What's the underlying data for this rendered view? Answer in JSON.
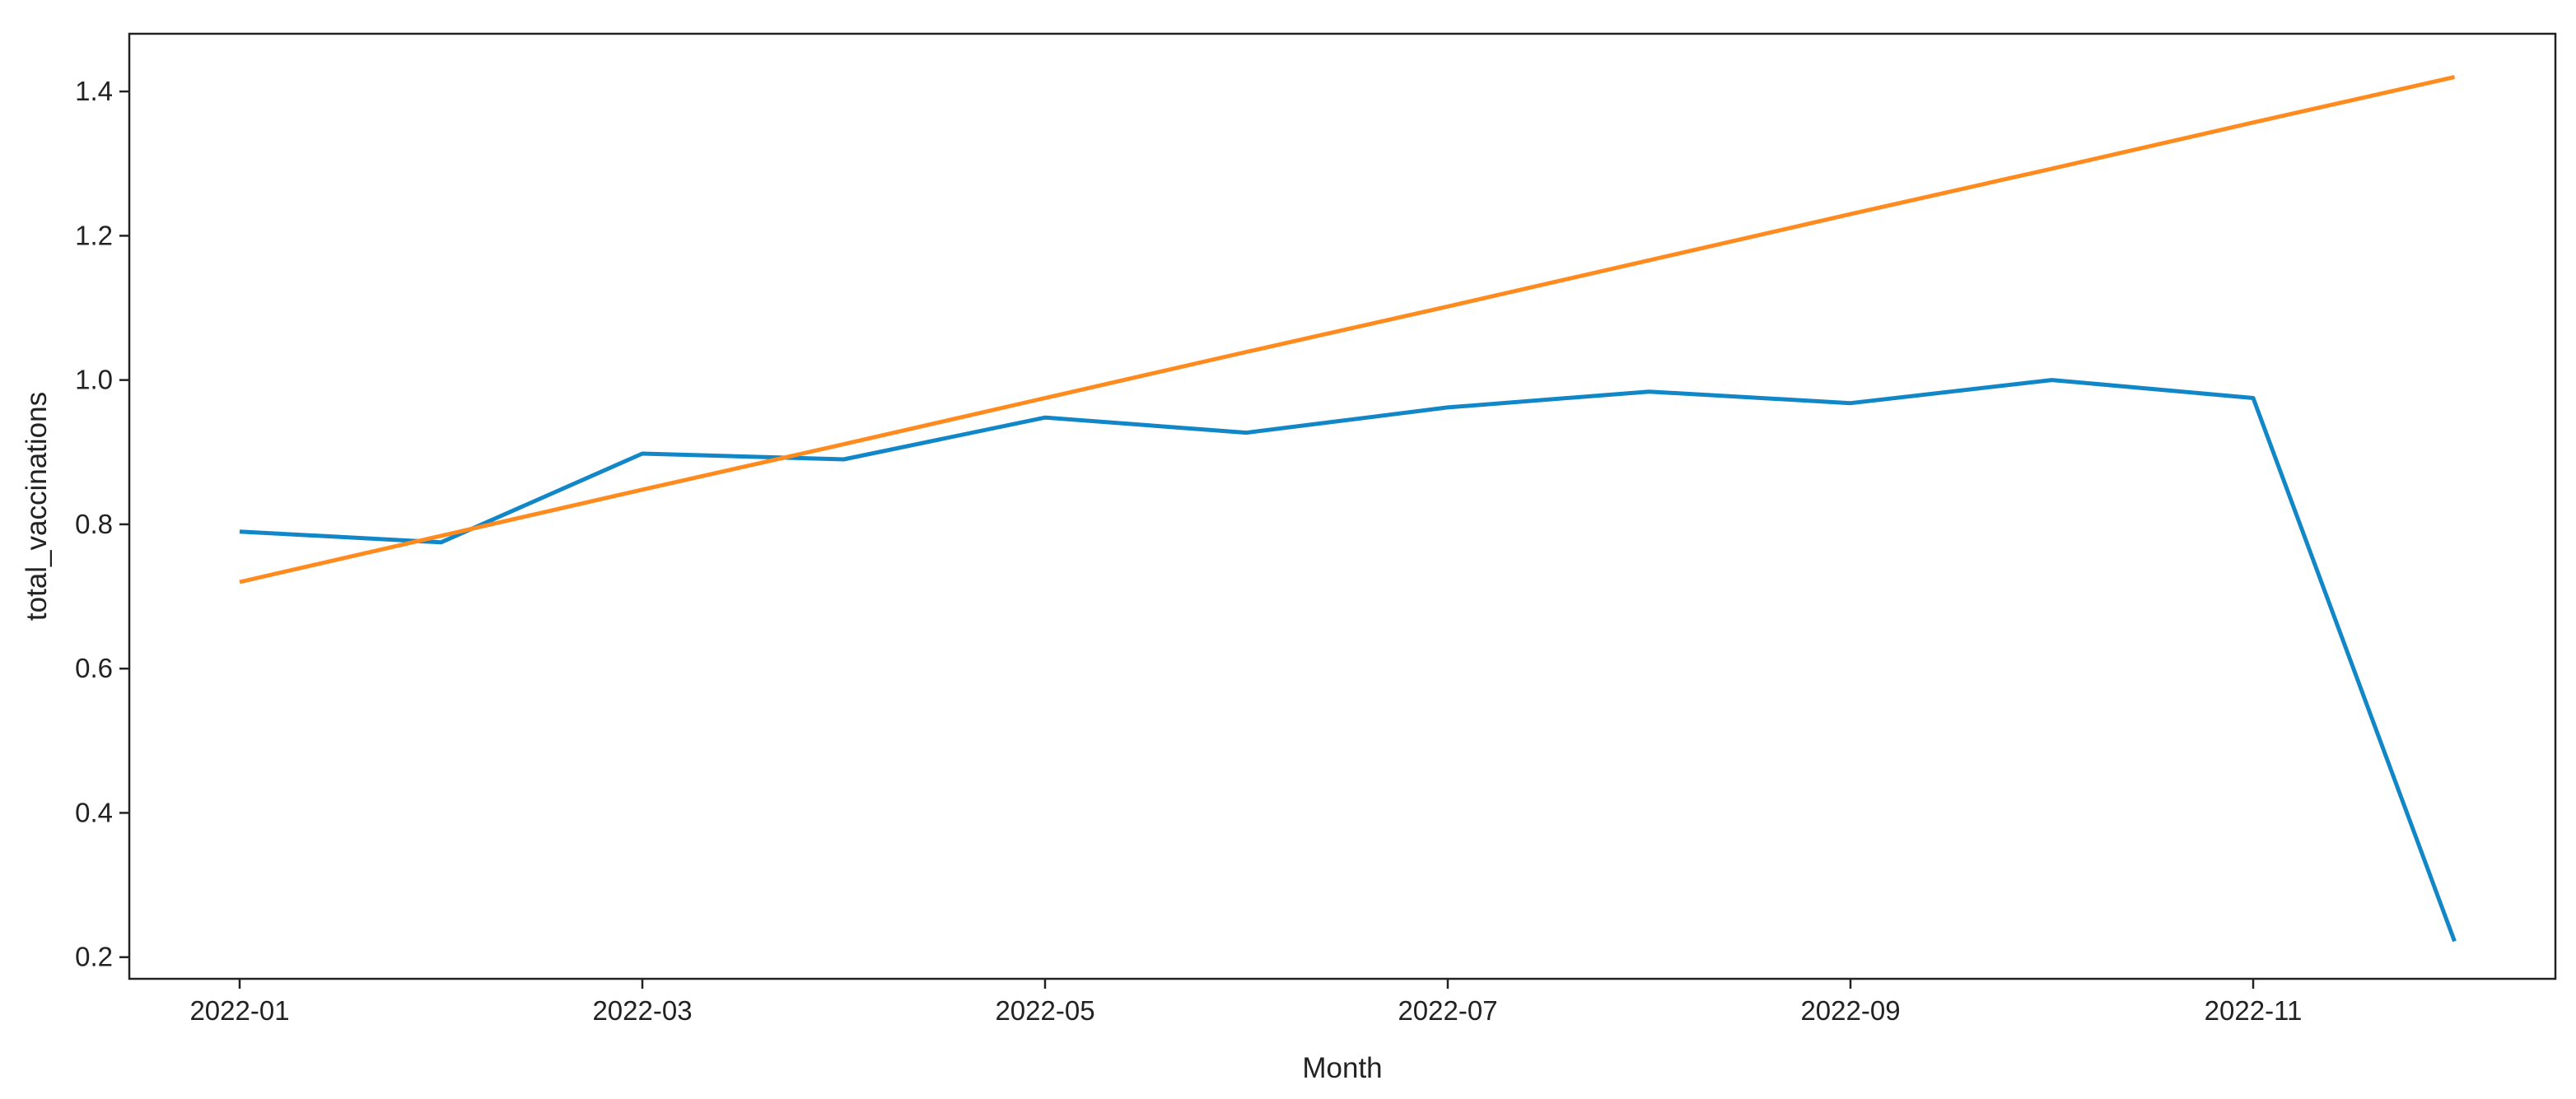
{
  "chart_data": {
    "type": "line",
    "title": "",
    "xlabel": "Month",
    "ylabel": "total_vaccinations",
    "x": [
      "2022-01",
      "2022-02",
      "2022-03",
      "2022-04",
      "2022-05",
      "2022-06",
      "2022-07",
      "2022-08",
      "2022-09",
      "2022-10",
      "2022-11",
      "2022-12"
    ],
    "x_ticks": [
      "2022-01",
      "2022-03",
      "2022-05",
      "2022-07",
      "2022-09",
      "2022-11"
    ],
    "y_ticks": [
      "0.2",
      "0.4",
      "0.6",
      "0.8",
      "1.0",
      "1.2",
      "1.4"
    ],
    "ylim": [
      0.17,
      1.48
    ],
    "grid": false,
    "series": [
      {
        "color": "#1187c8",
        "values": [
          0.79,
          0.775,
          0.898,
          0.89,
          0.948,
          0.927,
          0.962,
          0.984,
          0.968,
          1.0,
          0.975,
          0.222
        ]
      },
      {
        "color": "#ff8b1f",
        "values": [
          0.72,
          0.784,
          0.848,
          0.911,
          0.975,
          1.039,
          1.102,
          1.166,
          1.23,
          1.293,
          1.357,
          1.42
        ]
      }
    ]
  }
}
